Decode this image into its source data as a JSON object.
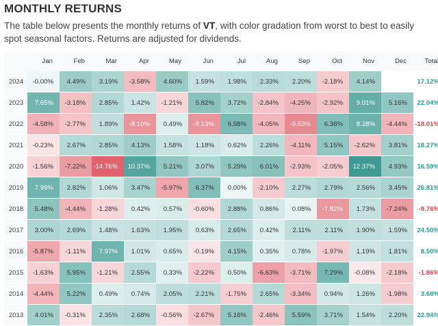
{
  "title": "MONTHLY RETURNS",
  "description": {
    "before": "The table below presents the monthly returns of ",
    "ticker": "VT",
    "after": ", with color gradation from worst to best to easily spot seasonal factors. Returns are adjusted for dividends."
  },
  "colors": {
    "positive_text": "#2a9d8f",
    "negative_text": "#d9414b",
    "best": "#3e9a93",
    "worst": "#e0636e",
    "neutral": "#ffffff"
  },
  "table": {
    "year_header": "",
    "months": [
      "Jan",
      "Feb",
      "Mar",
      "Apr",
      "May",
      "Jun",
      "Jul",
      "Aug",
      "Sep",
      "Oct",
      "Nov",
      "Dec"
    ],
    "total_header": "Total",
    "rows": [
      {
        "year": "2024",
        "values": [
          "-0.00%",
          "4.49%",
          "3.19%",
          "-3.58%",
          "4.60%",
          "1.59%",
          "1.98%",
          "2.33%",
          "2.20%",
          "-2.18%",
          "4.14%",
          ""
        ],
        "total": "17.12%"
      },
      {
        "year": "2023",
        "values": [
          "7.65%",
          "-3.18%",
          "2.85%",
          "1.42%",
          "-1.21%",
          "5.82%",
          "3.72%",
          "-2.84%",
          "-4.25%",
          "-2.92%",
          "9.01%",
          "5.16%"
        ],
        "total": "22.04%"
      },
      {
        "year": "2022",
        "values": [
          "-4.58%",
          "-2.77%",
          "1.89%",
          "-8.10%",
          "0.49%",
          "-8.13%",
          "6.98%",
          "-4.05%",
          "-9.53%",
          "6.38%",
          "8.28%",
          "-4.44%"
        ],
        "total": "-18.01%"
      },
      {
        "year": "2021",
        "values": [
          "-0.23%",
          "2.67%",
          "2.85%",
          "4.13%",
          "1.58%",
          "1.18%",
          "0.62%",
          "2.26%",
          "-4.11%",
          "5.15%",
          "-2.62%",
          "3.81%"
        ],
        "total": "18.27%"
      },
      {
        "year": "2020",
        "values": [
          "-1.56%",
          "-7.22%",
          "-14.76%",
          "10.37%",
          "5.21%",
          "3.07%",
          "5.29%",
          "6.01%",
          "-2.93%",
          "-2.05%",
          "12.37%",
          "4.93%"
        ],
        "total": "16.59%"
      },
      {
        "year": "2019",
        "values": [
          "7.99%",
          "2.82%",
          "1.06%",
          "3.47%",
          "-5.97%",
          "6.37%",
          "0.00%",
          "-2.10%",
          "2.27%",
          "2.79%",
          "2.56%",
          "3.45%"
        ],
        "total": "26.81%"
      },
      {
        "year": "2018",
        "values": [
          "5.48%",
          "-4.44%",
          "-1.28%",
          "0.42%",
          "0.57%",
          "-0.60%",
          "2.88%",
          "0.86%",
          "0.08%",
          "-7.82%",
          "1.73%",
          "-7.24%"
        ],
        "total": "-9.76%"
      },
      {
        "year": "2017",
        "values": [
          "3.00%",
          "2.69%",
          "1.48%",
          "1.63%",
          "1.95%",
          "0.63%",
          "2.65%",
          "0.42%",
          "2.11%",
          "2.11%",
          "1.90%",
          "1.59%"
        ],
        "total": "24.50%"
      },
      {
        "year": "2016",
        "values": [
          "-5.87%",
          "-1.11%",
          "7.97%",
          "1.01%",
          "0.65%",
          "-0.19%",
          "4.15%",
          "0.35%",
          "0.78%",
          "-1.97%",
          "1.19%",
          "1.81%"
        ],
        "total": "8.50%"
      },
      {
        "year": "2015",
        "values": [
          "-1.63%",
          "5.95%",
          "-1.21%",
          "2.55%",
          "0.33%",
          "-2.22%",
          "0.50%",
          "-6.63%",
          "-3.71%",
          "7.29%",
          "-0.08%",
          "-2.18%"
        ],
        "total": "-1.86%"
      },
      {
        "year": "2014",
        "values": [
          "-4.44%",
          "5.22%",
          "0.49%",
          "0.74%",
          "2.05%",
          "2.21%",
          "-1.75%",
          "2.65%",
          "-3.34%",
          "0.94%",
          "1.26%",
          "-1.98%"
        ],
        "total": "3.68%"
      },
      {
        "year": "2013",
        "values": [
          "4.01%",
          "-0.31%",
          "2.35%",
          "2.68%",
          "-0.56%",
          "-2.67%",
          "5.16%",
          "-2.46%",
          "5.59%",
          "3.71%",
          "1.54%",
          "2.20%"
        ],
        "total": "22.94%"
      }
    ]
  }
}
